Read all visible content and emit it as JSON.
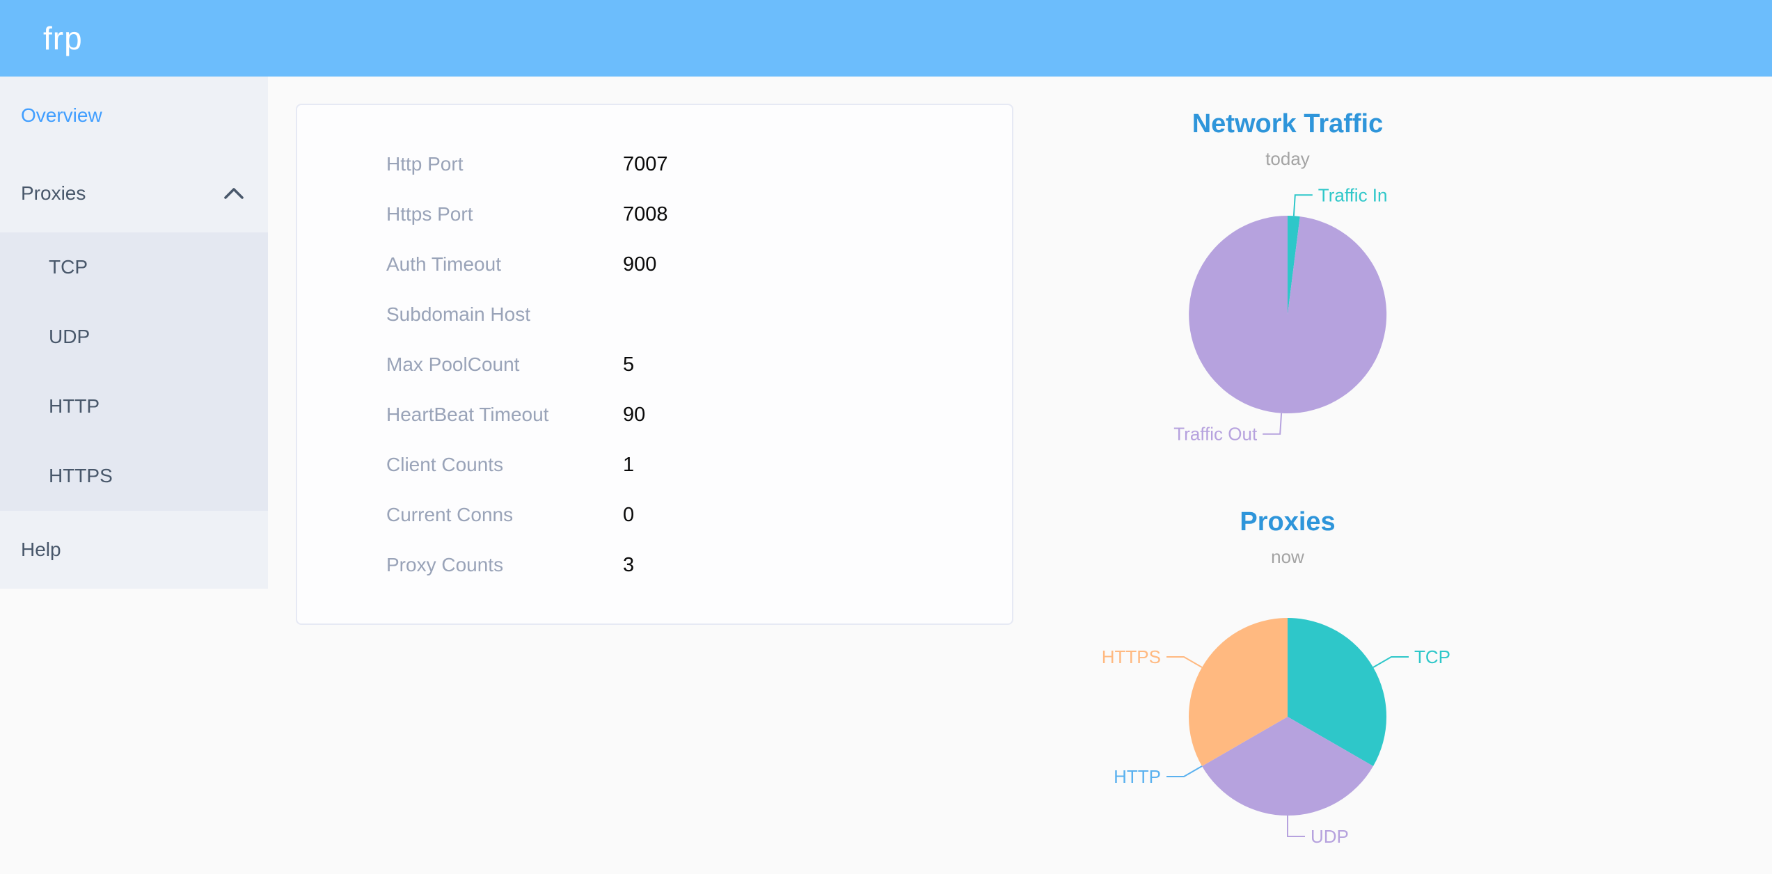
{
  "header": {
    "logo": "frp"
  },
  "sidebar": {
    "items": [
      {
        "label": "Overview",
        "active": true
      },
      {
        "label": "Proxies",
        "expanded": true,
        "children": [
          "TCP",
          "UDP",
          "HTTP",
          "HTTPS"
        ]
      },
      {
        "label": "Help"
      }
    ]
  },
  "server_info": {
    "rows": [
      {
        "label": "Http Port",
        "value": "7007"
      },
      {
        "label": "Https Port",
        "value": "7008"
      },
      {
        "label": "Auth Timeout",
        "value": "900"
      },
      {
        "label": "Subdomain Host",
        "value": ""
      },
      {
        "label": "Max PoolCount",
        "value": "5"
      },
      {
        "label": "HeartBeat Timeout",
        "value": "90"
      },
      {
        "label": "Client Counts",
        "value": "1"
      },
      {
        "label": "Current Conns",
        "value": "0"
      },
      {
        "label": "Proxy Counts",
        "value": "3"
      }
    ]
  },
  "chart_data": [
    {
      "type": "pie",
      "title": "Network Traffic",
      "subtitle": "today",
      "labels": [
        "Traffic In",
        "Traffic Out"
      ],
      "values": [
        2,
        98
      ],
      "values_are_estimated_percent": true,
      "colors": [
        "#2ec7c9",
        "#b6a2de"
      ],
      "legend_position": "none",
      "label_style": "outside-leader-lines-colored-as-slice"
    },
    {
      "type": "pie",
      "title": "Proxies",
      "subtitle": "now",
      "labels": [
        "TCP",
        "UDP",
        "HTTP",
        "HTTPS"
      ],
      "values": [
        1,
        1,
        0,
        1
      ],
      "colors": [
        "#2ec7c9",
        "#b6a2de",
        "#5ab1ef",
        "#ffb980"
      ],
      "legend_position": "none",
      "label_style": "outside-leader-lines-colored-as-slice"
    }
  ],
  "colors": {
    "header_bg": "#6cbdfc",
    "sidebar_bg": "#eef1f6",
    "submenu_bg": "#e4e8f1",
    "sidebar_text": "#48576a",
    "active_item": "#409eff",
    "page_bg": "#fafafa",
    "card_bg": "#fdfdfe",
    "card_border": "#e6e9f4",
    "info_label": "#99a3b8",
    "info_value": "#0a0a0a",
    "chart_title": "#2e95da",
    "chart_subtitle": "#a3a3a3"
  }
}
